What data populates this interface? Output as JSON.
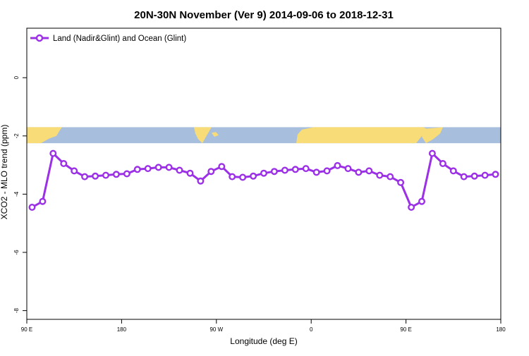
{
  "chart_data": {
    "type": "line",
    "title": "20N-30N November (Ver 9)   2014-09-06 to 2018-12-31",
    "xlabel": "Longitude (deg E)",
    "ylabel": "XCO2 - MLO trend (ppm)",
    "xlim": [
      90,
      540
    ],
    "ylim": [
      -8.3,
      1.7
    ],
    "grid": false,
    "legend_position": "top-left",
    "x_ticks": [
      {
        "value": 90,
        "label": "90 E"
      },
      {
        "value": 180,
        "label": "180"
      },
      {
        "value": 270,
        "label": "90 W"
      },
      {
        "value": 360,
        "label": "0"
      },
      {
        "value": 450,
        "label": "90 E"
      },
      {
        "value": 540,
        "label": "180"
      }
    ],
    "y_ticks": [
      {
        "value": 0,
        "label": "0"
      },
      {
        "value": -2,
        "label": "-2"
      },
      {
        "value": -4,
        "label": "-4"
      },
      {
        "value": -6,
        "label": "-6"
      },
      {
        "value": -8,
        "label": "-8"
      }
    ],
    "map_band": {
      "y_range": [
        -2.25,
        -1.7
      ],
      "ocean_color": "#a8bedd",
      "land_color": "#f8dc78"
    },
    "series": [
      {
        "name": "Land (Nadir&Glint) and Ocean (Glint)",
        "color": "#9b30e6",
        "x": [
          95,
          105,
          115,
          125,
          135,
          145,
          155,
          165,
          175,
          185,
          195,
          205,
          215,
          225,
          235,
          245,
          255,
          265,
          275,
          285,
          295,
          305,
          315,
          325,
          335,
          345,
          355,
          365,
          375,
          385,
          395,
          405,
          415,
          425,
          435,
          445,
          455,
          465,
          475,
          485,
          495,
          505,
          515,
          525,
          535
        ],
        "y": [
          -4.45,
          -4.25,
          -2.6,
          -2.95,
          -3.2,
          -3.4,
          -3.38,
          -3.35,
          -3.32,
          -3.3,
          -3.15,
          -3.12,
          -3.08,
          -3.08,
          -3.18,
          -3.28,
          -3.55,
          -3.22,
          -3.05,
          -3.4,
          -3.42,
          -3.38,
          -3.28,
          -3.22,
          -3.18,
          -3.15,
          -3.12,
          -3.25,
          -3.2,
          -3.02,
          -3.12,
          -3.25,
          -3.2,
          -3.35,
          -3.4,
          -3.6,
          -4.45,
          -4.25,
          -2.6,
          -2.95,
          -3.2,
          -3.4,
          -3.38,
          -3.35,
          -3.32
        ]
      }
    ]
  }
}
